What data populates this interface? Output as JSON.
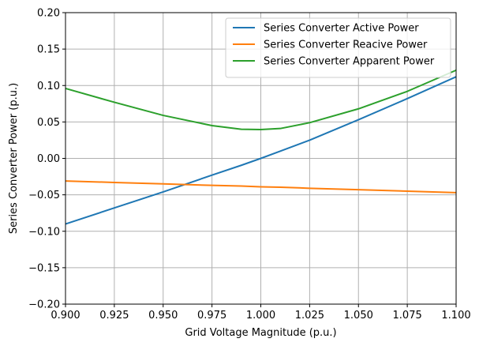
{
  "chart_data": {
    "type": "line",
    "xlabel": "Grid Voltage Magnitude (p.u.)",
    "ylabel": "Series Converter Power (p.u.)",
    "xlim": [
      0.9,
      1.1
    ],
    "ylim": [
      -0.2,
      0.2
    ],
    "xticks": [
      0.9,
      0.925,
      0.95,
      0.975,
      1.0,
      1.025,
      1.05,
      1.075,
      1.1
    ],
    "xtick_labels": [
      "0.900",
      "0.925",
      "0.950",
      "0.975",
      "1.000",
      "1.025",
      "1.050",
      "1.075",
      "1.100"
    ],
    "yticks": [
      -0.2,
      -0.15,
      -0.1,
      -0.05,
      0.0,
      0.05,
      0.1,
      0.15,
      0.2
    ],
    "ytick_labels": [
      "−0.20",
      "−0.15",
      "−0.10",
      "−0.05",
      "0.00",
      "0.05",
      "0.10",
      "0.15",
      "0.20"
    ],
    "grid": true,
    "legend_position": "top-right",
    "x": [
      0.9,
      0.925,
      0.95,
      0.975,
      0.99,
      1.0,
      1.01,
      1.025,
      1.05,
      1.075,
      1.1
    ],
    "series": [
      {
        "name": "Series Converter Active Power",
        "color": "#1f77b4",
        "values": [
          -0.09,
          -0.068,
          -0.046,
          -0.023,
          -0.0095,
          0.0,
          0.01,
          0.025,
          0.053,
          0.082,
          0.112
        ]
      },
      {
        "name": "Series Converter Reacive Power",
        "color": "#ff7f0e",
        "values": [
          -0.031,
          -0.033,
          -0.035,
          -0.037,
          -0.038,
          -0.039,
          -0.0395,
          -0.041,
          -0.043,
          -0.045,
          -0.047
        ]
      },
      {
        "name": "Series Converter Apparent Power",
        "color": "#2ca02c",
        "values": [
          0.096,
          0.077,
          0.059,
          0.045,
          0.04,
          0.0395,
          0.041,
          0.049,
          0.068,
          0.092,
          0.121
        ]
      }
    ]
  }
}
